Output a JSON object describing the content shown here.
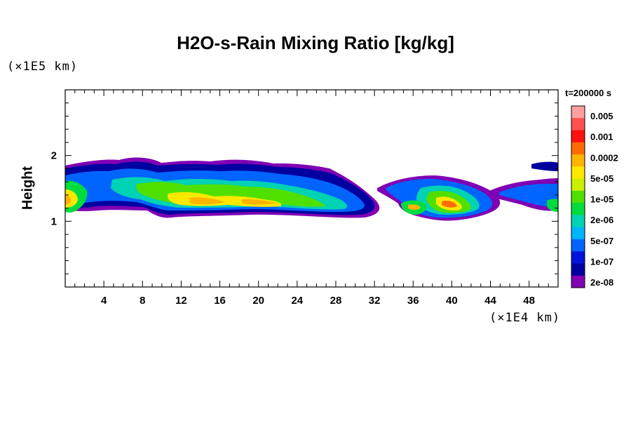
{
  "chart_data": {
    "type": "heatmap",
    "title": "H2O-s-Rain Mixing Ratio [kg/kg]",
    "ylabel": "Height",
    "x_unit": "(×1E4 km)",
    "y_unit": "(×1E5 km)",
    "time_label": "t=200000 s",
    "xlim": [
      0,
      51
    ],
    "ylim": [
      0,
      3
    ],
    "x_ticks": [
      4,
      8,
      12,
      16,
      20,
      24,
      28,
      32,
      36,
      40,
      44,
      48
    ],
    "y_ticks": [
      1,
      2
    ],
    "colorbar": {
      "labels": [
        "0.005",
        "0.001",
        "0.0002",
        "5e-05",
        "1e-05",
        "2e-06",
        "5e-07",
        "1e-07",
        "2e-08"
      ],
      "colors": [
        "#ff9fa0",
        "#ff5050",
        "#ff1010",
        "#ff6a00",
        "#ffb400",
        "#ffe800",
        "#c8f000",
        "#50e000",
        "#00dc40",
        "#00d2b4",
        "#00b4ff",
        "#0064ff",
        "#0014dc",
        "#0000a0",
        "#8000b4"
      ]
    }
  }
}
